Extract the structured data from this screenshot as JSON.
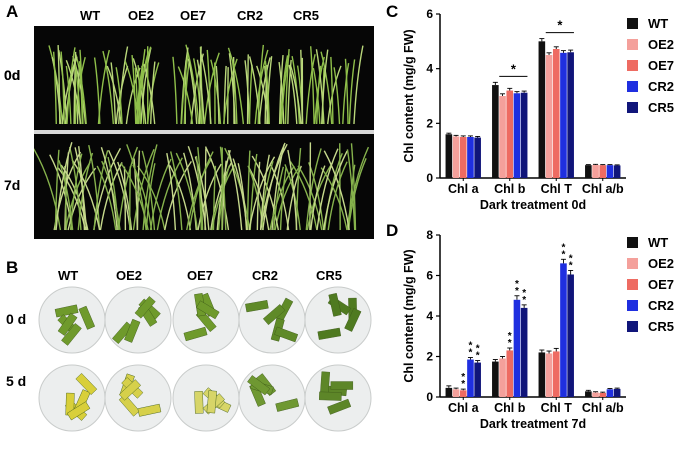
{
  "panels": {
    "A": {
      "label": "A",
      "genotypes": [
        "WT",
        "OE2",
        "OE7",
        "CR2",
        "CR5"
      ],
      "rows": [
        "0d",
        "7d"
      ]
    },
    "B": {
      "label": "B",
      "genotypes": [
        "WT",
        "OE2",
        "OE7",
        "CR2",
        "CR5"
      ],
      "rows": [
        "0 d",
        "5 d"
      ]
    },
    "C": {
      "label": "C"
    },
    "D": {
      "label": "D"
    }
  },
  "colors": {
    "WT": "#111111",
    "OE2": "#f4a09b",
    "OE7": "#ee6b62",
    "CR2": "#1f2fe0",
    "CR5": "#10157a"
  },
  "chart_data": [
    {
      "id": "C",
      "type": "bar",
      "categories": [
        "Chl a",
        "Chl b",
        "Chl T",
        "Chl a/b"
      ],
      "series": [
        {
          "name": "WT",
          "values": [
            1.6,
            3.4,
            5.0,
            0.47
          ],
          "errors": [
            0.04,
            0.1,
            0.1,
            0.02
          ]
        },
        {
          "name": "OE2",
          "values": [
            1.52,
            3.0,
            4.5,
            0.48
          ],
          "errors": [
            0.04,
            0.08,
            0.08,
            0.02
          ]
        },
        {
          "name": "OE7",
          "values": [
            1.5,
            3.2,
            4.72,
            0.47
          ],
          "errors": [
            0.04,
            0.08,
            0.08,
            0.02
          ]
        },
        {
          "name": "CR2",
          "values": [
            1.5,
            3.1,
            4.58,
            0.47
          ],
          "errors": [
            0.04,
            0.06,
            0.08,
            0.02
          ]
        },
        {
          "name": "CR5",
          "values": [
            1.48,
            3.12,
            4.6,
            0.46
          ],
          "errors": [
            0.04,
            0.06,
            0.08,
            0.02
          ]
        }
      ],
      "annotations": [
        {
          "category": "Chl b",
          "text": "*"
        },
        {
          "category": "Chl T",
          "text": "*"
        }
      ],
      "ylabel": "Chl content (mg/g FW)",
      "xlabel": "Dark treatment 0d",
      "ylim": [
        0,
        6
      ],
      "yticks": [
        "0",
        "2",
        "4",
        "6"
      ],
      "legend": "top-right"
    },
    {
      "id": "D",
      "type": "bar",
      "categories": [
        "Chl a",
        "Chl b",
        "Chl T",
        "Chl a/b"
      ],
      "series": [
        {
          "name": "WT",
          "values": [
            0.45,
            1.75,
            2.2,
            0.28
          ],
          "errors": [
            0.1,
            0.1,
            0.12,
            0.05
          ]
        },
        {
          "name": "OE2",
          "values": [
            0.38,
            1.9,
            2.15,
            0.22
          ],
          "errors": [
            0.06,
            0.1,
            0.12,
            0.04
          ]
        },
        {
          "name": "OE7",
          "values": [
            0.33,
            2.3,
            2.25,
            0.2
          ],
          "errors": [
            0.06,
            0.12,
            0.15,
            0.04
          ]
        },
        {
          "name": "CR2",
          "values": [
            1.85,
            4.8,
            6.6,
            0.38
          ],
          "errors": [
            0.1,
            0.2,
            0.2,
            0.04
          ]
        },
        {
          "name": "CR5",
          "values": [
            1.7,
            4.4,
            6.05,
            0.4
          ],
          "errors": [
            0.1,
            0.15,
            0.2,
            0.04
          ]
        }
      ],
      "significance": [
        {
          "category": "Chl a",
          "series": [
            "OE7",
            "CR2",
            "CR5"
          ],
          "text": "**"
        },
        {
          "category": "Chl b",
          "series": [
            "OE7",
            "CR2",
            "CR5"
          ],
          "text": "**"
        },
        {
          "category": "Chl T",
          "series": [
            "CR2",
            "CR5"
          ],
          "text": "**"
        }
      ],
      "ylabel": "Chl content (mg/g FW)",
      "xlabel": "Dark treatment 7d",
      "ylim": [
        0,
        8
      ],
      "yticks": [
        "0",
        "2",
        "4",
        "6",
        "8"
      ],
      "legend": "top-right"
    }
  ]
}
